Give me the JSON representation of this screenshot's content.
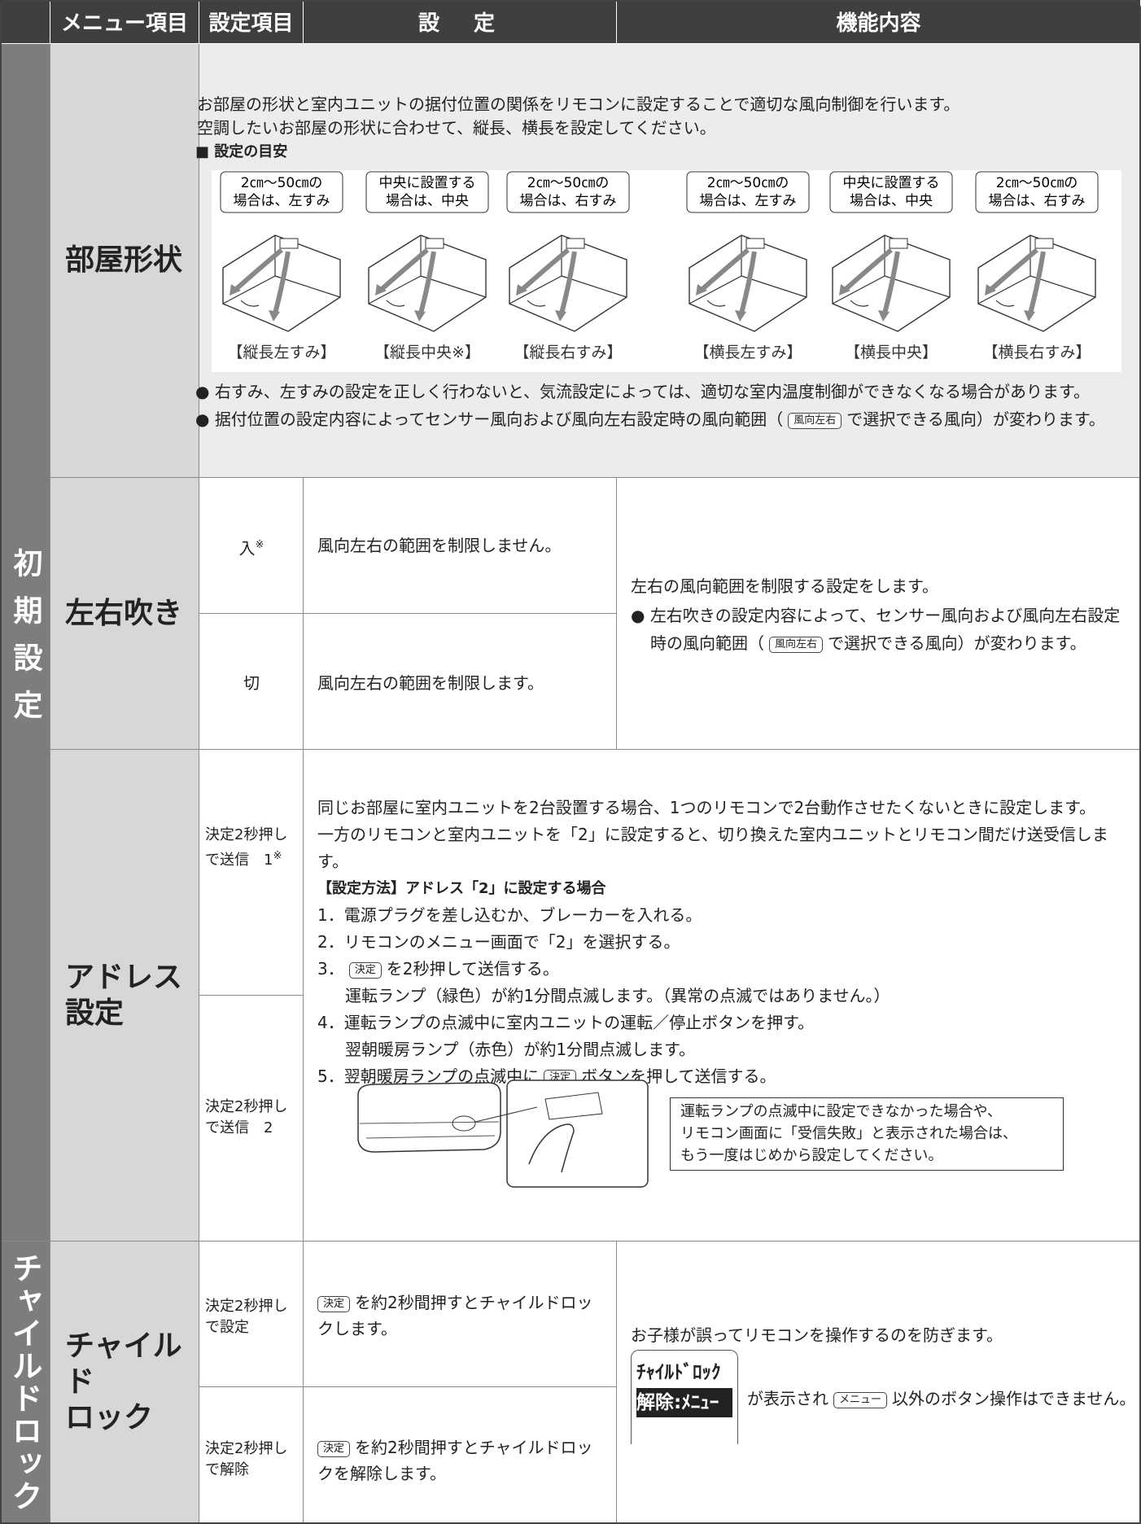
{
  "header": {
    "menu_item": "メニュー項目",
    "setting_item": "設定項目",
    "setting": "設　定",
    "function": "機能内容"
  },
  "groups": {
    "initial": "初期設定",
    "child": "チャイルドロック"
  },
  "room_shape": {
    "menu": "部屋形状",
    "intro": [
      "お部屋の形状と室内ユニットの据付位置の関係をリモコンに設定することで適切な風向制御を行います。",
      "空調したいお部屋の形状に合わせて、縦長、横長を設定してください。"
    ],
    "guide_title": "■ 設定の目安",
    "diagrams": [
      {
        "callout": [
          "2㎝〜50㎝の",
          "場合は、左すみ"
        ],
        "caption": "【縦長左すみ】"
      },
      {
        "callout": [
          "中央に設置する",
          "場合は、中央"
        ],
        "caption": "【縦長中央※】"
      },
      {
        "callout": [
          "2㎝〜50㎝の",
          "場合は、右すみ"
        ],
        "caption": "【縦長右すみ】"
      },
      {
        "callout": [
          "2㎝〜50㎝の",
          "場合は、左すみ"
        ],
        "caption": "【横長左すみ】"
      },
      {
        "callout": [
          "中央に設置する",
          "場合は、中央"
        ],
        "caption": "【横長中央】"
      },
      {
        "callout": [
          "2㎝〜50㎝の",
          "場合は、右すみ"
        ],
        "caption": "【横長右すみ】"
      }
    ],
    "notes": [
      {
        "bullet": "●",
        "text": "右すみ、左すみの設定を正しく行わないと、気流設定によっては、適切な室内温度制御ができなくなる場合があります。"
      },
      {
        "bullet": "●",
        "before": "据付位置の設定内容によってセンサー風向および風向左右設定時の風向範囲（",
        "button": "風向左右",
        "after": "で選択できる風向）が変わります。"
      }
    ]
  },
  "swing": {
    "menu": "左右吹き",
    "options": [
      {
        "label": "入",
        "mark": "※",
        "description": "風向左右の範囲を制限しません。"
      },
      {
        "label": "切",
        "description": "風向左右の範囲を制限します。"
      }
    ],
    "function": {
      "lead": "左右の風向範囲を制限する設定をします。",
      "bullet": "●",
      "before": "左右吹きの設定内容によって、センサー風向および風向左右設定時の風向範囲（",
      "button": "風向左右",
      "after": "で選択できる風向）が変わります。"
    }
  },
  "address": {
    "menu": [
      "アドレス",
      "設定"
    ],
    "options": [
      {
        "label": "決定2秒押しで送信　1",
        "mark": "※"
      },
      {
        "label": "決定2秒押しで送信　2"
      }
    ],
    "content": {
      "intro": [
        "同じお部屋に室内ユニットを2台設置する場合、1つのリモコンで2台動作させたくないときに設定します。",
        "一方のリモコンと室内ユニットを「2」に設定すると、切り換えた室内ユニットとリモコン間だけ送受信します。"
      ],
      "method_title": "【設定方法】アドレス「2」に設定する場合",
      "steps": [
        {
          "num": "1．",
          "text": "電源プラグを差し込むか、ブレーカーを入れる。"
        },
        {
          "num": "2．",
          "text": "リモコンのメニュー画面で「2」を選択する。"
        },
        {
          "num": "3．",
          "button": "決定",
          "text": "を2秒押して送信する。",
          "sub": "運転ランプ（緑色）が約1分間点滅します。（異常の点滅ではありません。）"
        },
        {
          "num": "4．",
          "text": "運転ランプの点滅中に室内ユニットの運転／停止ボタンを押す。",
          "sub": "翌朝暖房ランプ（赤色）が約1分間点滅します。"
        },
        {
          "num": "5．",
          "text": "翌朝暖房ランプの点滅中に",
          "button": "決定",
          "after": "ボタンを押して送信する。"
        }
      ],
      "notice": [
        "運転ランプの点滅中に設定できなかった場合や、",
        "リモコン画面に「受信失敗」と表示された場合は、",
        "もう一度はじめから設定してください。"
      ]
    }
  },
  "child_lock": {
    "menu": [
      "チャイルド",
      "ロック"
    ],
    "options": [
      {
        "label": "決定2秒押しで設定",
        "button": "決定",
        "description": "を約2秒間押すとチャイルドロックします。"
      },
      {
        "label": "決定2秒押しで解除",
        "button": "決定",
        "description": "を約2秒間押すとチャイルドロックを解除します。"
      }
    ],
    "function": {
      "lead": "お子様が誤ってリモコンを操作するのを防ぎます。",
      "display": [
        "ﾁｬｲﾙﾄﾞﾛｯｸ",
        "解除:ﾒﾆｭｰ"
      ],
      "before": "が表示され",
      "button": "メニュー",
      "after": "以外のボタン操作はできません。"
    }
  }
}
